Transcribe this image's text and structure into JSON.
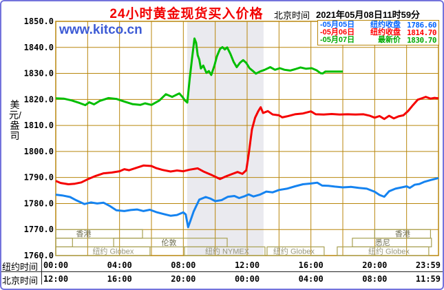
{
  "header": {
    "title": "24小时黄金现货买入价格",
    "timezone_label": "北京时间",
    "datetime": "2021年05月08日11时59分"
  },
  "watermark": "www.kitco.cn",
  "legend": {
    "items": [
      {
        "date": "-05月05日",
        "type": "纽约收盘",
        "value": "1786.60",
        "color": "#0063FF"
      },
      {
        "date": "-05月06日",
        "type": "纽约收盘",
        "value": "1814.70",
        "color": "#FF0000"
      },
      {
        "date": "-05月07日",
        "type": "最新价",
        "value": "1830.70",
        "color": "#00AA00"
      }
    ]
  },
  "y_axis": {
    "unit": "美元/盎司",
    "ticks": [
      "1850.0",
      "1840.0",
      "1830.0",
      "1820.0",
      "1810.0",
      "1800.0",
      "1790.0",
      "1780.0",
      "1770.0",
      "1760.0"
    ]
  },
  "x_axis": {
    "tick_hours": [
      0,
      4,
      8,
      12,
      16,
      20,
      24
    ],
    "rows": [
      {
        "label": "纽约时间",
        "ticks": [
          "00:00",
          "04:00",
          "08:00",
          "12:00",
          "16:00",
          "20:00",
          "23:59"
        ]
      },
      {
        "label": "北京时间",
        "ticks": [
          "12:00",
          "16:00",
          "20:00",
          "00:00",
          "04:00",
          "08:00",
          "11:59"
        ]
      }
    ]
  },
  "sessions": {
    "boxes": [
      {
        "row": 0,
        "start_h": 0.0,
        "end_h": 5.44,
        "label": "香港",
        "label_h": 1.75,
        "tone": "dark"
      },
      {
        "row": 0,
        "start_h": 20.0,
        "end_h": 23.5,
        "label": "香港",
        "label_h": 21.75,
        "tone": "dark"
      },
      {
        "row": 1,
        "start_h": 0.0,
        "end_h": 1.05,
        "label": "",
        "label_h": 0,
        "tone": "dark"
      },
      {
        "row": 1,
        "start_h": 3.63,
        "end_h": 10.75,
        "label": "伦敦",
        "label_h": 7.1,
        "tone": "dark"
      },
      {
        "row": 1,
        "start_h": 18.6,
        "end_h": 23.56,
        "label": "悉尼",
        "label_h": 20.5,
        "tone": "dark"
      },
      {
        "row": 2,
        "start_h": 0.0,
        "end_h": 5.91,
        "label": "纽约 Globex",
        "label_h": 3.6,
        "tone": "light"
      },
      {
        "row": 2,
        "start_h": 8.07,
        "end_h": 13.12,
        "label": "纽约 NYMEX",
        "label_h": 10.75,
        "tone": "light"
      },
      {
        "row": 2,
        "start_h": 13.25,
        "end_h": 16.83,
        "label": "纽约 Globex",
        "label_h": 14.93,
        "tone": "light"
      },
      {
        "row": 2,
        "start_h": 17.65,
        "end_h": 23.39,
        "label": "纽约 Globex",
        "label_h": 20.89,
        "tone": "light"
      }
    ]
  },
  "shade": {
    "start_h": 8.24,
    "end_h": 13.03
  },
  "colors": {
    "frame_blue": "#7373DC",
    "grid_gold": "#B8860B",
    "title_red": "#F20000",
    "watermark_blue": "#3D5BD5",
    "shade_grey": "#EAEAEF",
    "session_border": "#A8A052",
    "session_label_dark": "#6E6E52",
    "session_label_light": "#98987E",
    "axis_text": "#000000",
    "table_line": "#222222"
  },
  "chart_data": {
    "type": "line",
    "title": "24小时黄金现货买入价格",
    "ylabel": "美元/盎司",
    "ylim": [
      1760,
      1850
    ],
    "xlim_hours": [
      0,
      24
    ],
    "grid": {
      "x_step_hours": 2,
      "y_step": 10,
      "on": true
    },
    "legend_position": "top-right",
    "series": [
      {
        "name": "05月05日",
        "close_label": "纽约收盘",
        "close_value": 1786.6,
        "color": "#1583F0",
        "points": [
          [
            0,
            1783.4
          ],
          [
            0.4,
            1783.1
          ],
          [
            0.9,
            1782.5
          ],
          [
            1.3,
            1781.2
          ],
          [
            1.8,
            1779.8
          ],
          [
            2.2,
            1780.4
          ],
          [
            2.6,
            1780.0
          ],
          [
            3.0,
            1780.3
          ],
          [
            3.4,
            1779.0
          ],
          [
            3.8,
            1777.4
          ],
          [
            4.3,
            1777.1
          ],
          [
            4.7,
            1777.5
          ],
          [
            5.1,
            1777.7
          ],
          [
            5.5,
            1777.1
          ],
          [
            5.9,
            1777.6
          ],
          [
            6.3,
            1776.7
          ],
          [
            6.8,
            1775.9
          ],
          [
            7.2,
            1775.3
          ],
          [
            7.6,
            1775.6
          ],
          [
            8.0,
            1776.6
          ],
          [
            8.15,
            1775.8
          ],
          [
            8.3,
            1770.9
          ],
          [
            8.45,
            1773.5
          ],
          [
            8.65,
            1777.0
          ],
          [
            9.0,
            1781.5
          ],
          [
            9.4,
            1782.5
          ],
          [
            9.7,
            1781.9
          ],
          [
            10.0,
            1780.9
          ],
          [
            10.4,
            1781.3
          ],
          [
            10.8,
            1782.6
          ],
          [
            11.2,
            1782.9
          ],
          [
            11.5,
            1782.1
          ],
          [
            11.8,
            1782.7
          ],
          [
            12.1,
            1783.5
          ],
          [
            12.4,
            1782.7
          ],
          [
            12.8,
            1783.4
          ],
          [
            13.2,
            1784.6
          ],
          [
            13.6,
            1784.3
          ],
          [
            14.0,
            1785.2
          ],
          [
            14.5,
            1785.7
          ],
          [
            15.0,
            1786.6
          ],
          [
            15.5,
            1787.4
          ],
          [
            16.0,
            1787.7
          ],
          [
            16.4,
            1788.0
          ],
          [
            16.7,
            1786.9
          ],
          [
            17.1,
            1786.8
          ],
          [
            17.5,
            1786.5
          ],
          [
            18.0,
            1786.2
          ],
          [
            18.5,
            1786.4
          ],
          [
            19.0,
            1786.0
          ],
          [
            19.5,
            1785.7
          ],
          [
            20.0,
            1784.5
          ],
          [
            20.3,
            1783.3
          ],
          [
            20.6,
            1782.6
          ],
          [
            20.9,
            1784.7
          ],
          [
            21.3,
            1785.7
          ],
          [
            21.7,
            1786.2
          ],
          [
            22.0,
            1786.6
          ],
          [
            22.2,
            1786.0
          ],
          [
            22.5,
            1787.2
          ],
          [
            22.8,
            1787.5
          ],
          [
            23.1,
            1788.3
          ],
          [
            23.5,
            1789.0
          ],
          [
            24,
            1789.8
          ]
        ]
      },
      {
        "name": "05月06日",
        "close_label": "纽约收盘",
        "close_value": 1814.7,
        "color": "#F50000",
        "points": [
          [
            0,
            1788.7
          ],
          [
            0.3,
            1787.9
          ],
          [
            0.8,
            1787.4
          ],
          [
            1.2,
            1787.6
          ],
          [
            1.6,
            1788.1
          ],
          [
            2.0,
            1789.3
          ],
          [
            2.5,
            1790.6
          ],
          [
            3.0,
            1791.6
          ],
          [
            3.5,
            1791.9
          ],
          [
            4.0,
            1792.4
          ],
          [
            4.3,
            1793.2
          ],
          [
            4.6,
            1792.8
          ],
          [
            5.0,
            1793.6
          ],
          [
            5.5,
            1794.6
          ],
          [
            6.0,
            1794.4
          ],
          [
            6.3,
            1793.6
          ],
          [
            6.7,
            1792.9
          ],
          [
            7.2,
            1792.3
          ],
          [
            7.6,
            1792.7
          ],
          [
            8.0,
            1792.4
          ],
          [
            8.4,
            1793.0
          ],
          [
            8.9,
            1793.5
          ],
          [
            9.3,
            1792.2
          ],
          [
            9.8,
            1790.9
          ],
          [
            10.3,
            1789.4
          ],
          [
            10.7,
            1790.5
          ],
          [
            11.0,
            1791.2
          ],
          [
            11.4,
            1792.1
          ],
          [
            11.7,
            1791.4
          ],
          [
            11.95,
            1792.8
          ],
          [
            12.1,
            1799.0
          ],
          [
            12.3,
            1808.5
          ],
          [
            12.5,
            1813.0
          ],
          [
            12.7,
            1815.5
          ],
          [
            12.85,
            1817.0
          ],
          [
            13.0,
            1814.8
          ],
          [
            13.3,
            1815.5
          ],
          [
            13.6,
            1814.2
          ],
          [
            14.0,
            1813.9
          ],
          [
            14.2,
            1813.1
          ],
          [
            14.5,
            1813.5
          ],
          [
            15.0,
            1814.3
          ],
          [
            15.5,
            1814.6
          ],
          [
            16.0,
            1815.4
          ],
          [
            16.3,
            1814.3
          ],
          [
            16.8,
            1814.2
          ],
          [
            17.3,
            1814.4
          ],
          [
            17.8,
            1814.2
          ],
          [
            18.3,
            1814.3
          ],
          [
            18.8,
            1814.2
          ],
          [
            19.3,
            1814.3
          ],
          [
            19.7,
            1813.7
          ],
          [
            20.0,
            1813.0
          ],
          [
            20.3,
            1813.6
          ],
          [
            20.6,
            1812.5
          ],
          [
            20.9,
            1813.7
          ],
          [
            21.2,
            1812.7
          ],
          [
            21.5,
            1813.5
          ],
          [
            21.8,
            1813.9
          ],
          [
            22.1,
            1815.6
          ],
          [
            22.4,
            1817.8
          ],
          [
            22.7,
            1819.9
          ],
          [
            23.0,
            1820.5
          ],
          [
            23.2,
            1821.0
          ],
          [
            23.5,
            1820.3
          ],
          [
            23.75,
            1820.6
          ],
          [
            24,
            1820.4
          ]
        ]
      },
      {
        "name": "05月07日",
        "close_label": "最新价",
        "close_value": 1830.7,
        "color": "#00BE00",
        "points": [
          [
            0,
            1820.4
          ],
          [
            0.5,
            1820.3
          ],
          [
            1.0,
            1819.6
          ],
          [
            1.5,
            1818.6
          ],
          [
            1.85,
            1817.8
          ],
          [
            2.1,
            1818.9
          ],
          [
            2.4,
            1818.1
          ],
          [
            2.75,
            1819.4
          ],
          [
            3.3,
            1820.5
          ],
          [
            3.8,
            1820.2
          ],
          [
            4.3,
            1819.2
          ],
          [
            4.8,
            1818.2
          ],
          [
            5.3,
            1817.9
          ],
          [
            5.6,
            1818.5
          ],
          [
            6.0,
            1817.9
          ],
          [
            6.5,
            1819.6
          ],
          [
            6.9,
            1822.0
          ],
          [
            7.3,
            1821.0
          ],
          [
            7.75,
            1822.3
          ],
          [
            7.95,
            1820.9
          ],
          [
            8.1,
            1819.6
          ],
          [
            8.25,
            1818.8
          ],
          [
            8.4,
            1828.0
          ],
          [
            8.55,
            1836.0
          ],
          [
            8.7,
            1843.4
          ],
          [
            8.8,
            1841.8
          ],
          [
            8.9,
            1837.0
          ],
          [
            9.0,
            1835.3
          ],
          [
            9.1,
            1831.9
          ],
          [
            9.25,
            1833.0
          ],
          [
            9.45,
            1830.2
          ],
          [
            9.6,
            1830.9
          ],
          [
            9.75,
            1829.4
          ],
          [
            9.95,
            1833.0
          ],
          [
            10.1,
            1836.5
          ],
          [
            10.3,
            1839.4
          ],
          [
            10.45,
            1840.1
          ],
          [
            10.6,
            1839.2
          ],
          [
            10.75,
            1840.0
          ],
          [
            10.95,
            1837.5
          ],
          [
            11.15,
            1834.5
          ],
          [
            11.35,
            1832.4
          ],
          [
            11.55,
            1834.1
          ],
          [
            11.75,
            1835.1
          ],
          [
            11.95,
            1834.0
          ],
          [
            12.15,
            1832.0
          ],
          [
            12.35,
            1831.0
          ],
          [
            12.55,
            1829.9
          ],
          [
            12.8,
            1830.7
          ],
          [
            13.1,
            1831.4
          ],
          [
            13.45,
            1832.4
          ],
          [
            13.75,
            1831.4
          ],
          [
            14.05,
            1832.0
          ],
          [
            14.35,
            1831.4
          ],
          [
            14.7,
            1831.1
          ],
          [
            15.0,
            1831.6
          ],
          [
            15.35,
            1832.3
          ],
          [
            15.7,
            1831.8
          ],
          [
            16.05,
            1832.0
          ],
          [
            16.35,
            1831.2
          ],
          [
            16.6,
            1830.1
          ],
          [
            16.75,
            1830.0
          ],
          [
            16.9,
            1830.7
          ],
          [
            18.0,
            1830.7
          ]
        ]
      }
    ]
  }
}
